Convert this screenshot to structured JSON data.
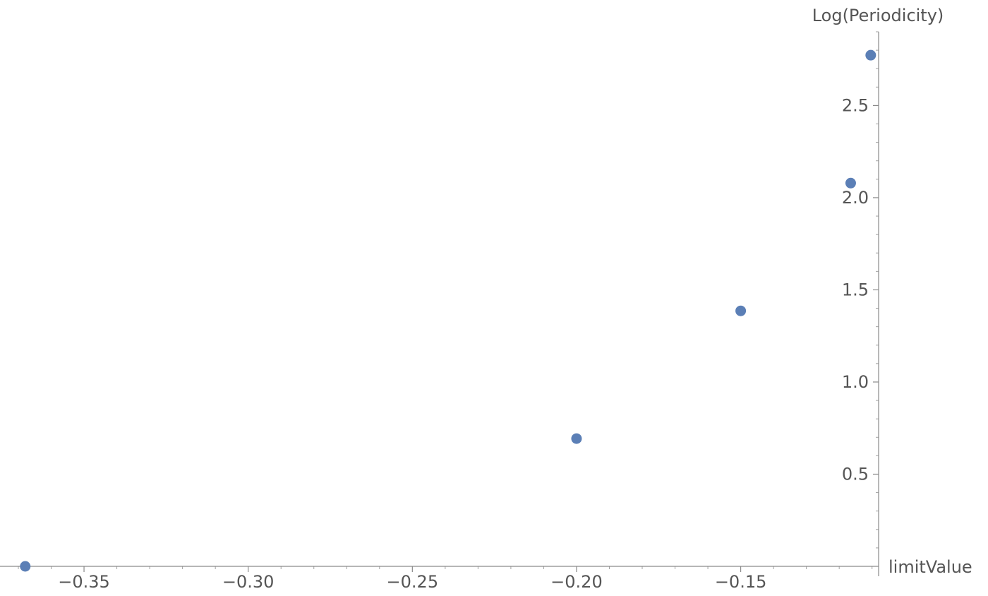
{
  "chart_data": {
    "type": "scatter",
    "title": "",
    "xlabel": "limitValue",
    "ylabel": "Log(Periodicity)",
    "xlim": [
      -0.37,
      -0.108
    ],
    "ylim": [
      0,
      2.9
    ],
    "x_ticks": [
      "-0.35",
      "-0.30",
      "-0.25",
      "-0.20",
      "-0.15"
    ],
    "x_tick_values": [
      -0.35,
      -0.3,
      -0.25,
      -0.2,
      -0.15
    ],
    "y_ticks": [
      "0.5",
      "1.0",
      "1.5",
      "2.0",
      "2.5"
    ],
    "y_tick_values": [
      0.5,
      1.0,
      1.5,
      2.0,
      2.5
    ],
    "grid": false,
    "point_color": "#5b7fb6",
    "axis_color": "#8a8a8a",
    "series": [
      {
        "x": [
          -0.3679,
          -0.2,
          -0.15,
          -0.1165,
          -0.1104
        ],
        "y": [
          0.0,
          0.693,
          1.386,
          2.079,
          2.773
        ]
      }
    ]
  }
}
